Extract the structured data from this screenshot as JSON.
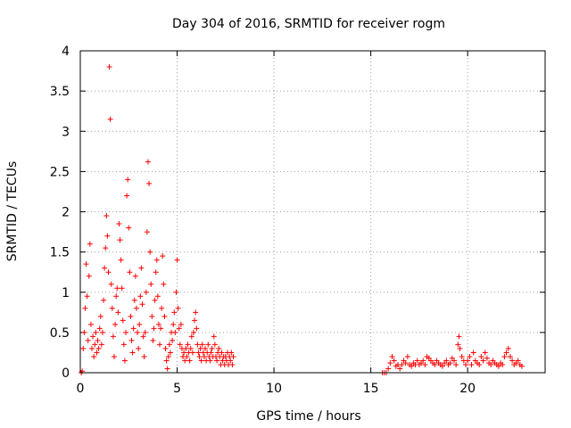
{
  "chart_data": {
    "type": "scatter",
    "title": "Day 304 of 2016, SRMTID for receiver rogm",
    "xlabel": "GPS time / hours",
    "ylabel": "SRMTID / TECUs",
    "xlim": [
      0,
      24
    ],
    "ylim": [
      0,
      4
    ],
    "xticks": [
      0,
      5,
      10,
      15,
      20
    ],
    "xtick_labels": [
      "0",
      "5",
      "10",
      "15",
      "20"
    ],
    "yticks": [
      0,
      0.5,
      1,
      1.5,
      2,
      2.5,
      3,
      3.5,
      4
    ],
    "ytick_labels": [
      "0",
      "0.5",
      "1",
      "1.5",
      "2",
      "2.5",
      "3",
      "3.5",
      "4"
    ],
    "grid": true,
    "marker": "+",
    "color": "#ff0000",
    "series": [
      {
        "name": "SRMTID",
        "points": [
          [
            0.05,
            0.0
          ],
          [
            0.1,
            0.02
          ],
          [
            0.15,
            0.3
          ],
          [
            0.2,
            0.5
          ],
          [
            0.25,
            0.8
          ],
          [
            0.3,
            1.35
          ],
          [
            0.35,
            0.95
          ],
          [
            0.4,
            0.4
          ],
          [
            0.45,
            1.2
          ],
          [
            0.5,
            1.6
          ],
          [
            0.55,
            0.6
          ],
          [
            0.6,
            0.3
          ],
          [
            0.65,
            0.45
          ],
          [
            0.7,
            0.2
          ],
          [
            0.75,
            0.35
          ],
          [
            0.8,
            0.5
          ],
          [
            0.85,
            0.25
          ],
          [
            0.9,
            0.4
          ],
          [
            0.95,
            0.3
          ],
          [
            1.0,
            0.55
          ],
          [
            1.05,
            0.7
          ],
          [
            1.1,
            0.35
          ],
          [
            1.15,
            0.5
          ],
          [
            1.2,
            0.9
          ],
          [
            1.25,
            1.3
          ],
          [
            1.3,
            1.55
          ],
          [
            1.35,
            1.95
          ],
          [
            1.4,
            1.7
          ],
          [
            1.45,
            1.25
          ],
          [
            1.5,
            3.8
          ],
          [
            1.55,
            3.15
          ],
          [
            1.6,
            1.1
          ],
          [
            1.65,
            0.8
          ],
          [
            1.7,
            0.45
          ],
          [
            1.75,
            0.2
          ],
          [
            1.8,
            0.6
          ],
          [
            1.85,
            0.95
          ],
          [
            1.9,
            1.05
          ],
          [
            1.95,
            0.75
          ],
          [
            2.0,
            1.85
          ],
          [
            2.05,
            1.65
          ],
          [
            2.1,
            1.4
          ],
          [
            2.15,
            1.05
          ],
          [
            2.2,
            0.65
          ],
          [
            2.25,
            0.35
          ],
          [
            2.3,
            0.15
          ],
          [
            2.35,
            0.5
          ],
          [
            2.4,
            2.2
          ],
          [
            2.45,
            2.4
          ],
          [
            2.5,
            1.8
          ],
          [
            2.55,
            1.25
          ],
          [
            2.6,
            0.7
          ],
          [
            2.65,
            0.4
          ],
          [
            2.7,
            0.25
          ],
          [
            2.75,
            0.55
          ],
          [
            2.8,
            0.9
          ],
          [
            2.85,
            1.2
          ],
          [
            2.9,
            0.8
          ],
          [
            2.95,
            0.5
          ],
          [
            3.0,
            0.3
          ],
          [
            3.05,
            0.6
          ],
          [
            3.1,
            0.95
          ],
          [
            3.15,
            1.3
          ],
          [
            3.2,
            0.85
          ],
          [
            3.25,
            0.45
          ],
          [
            3.3,
            0.2
          ],
          [
            3.35,
            0.5
          ],
          [
            3.4,
            1.0
          ],
          [
            3.45,
            1.75
          ],
          [
            3.5,
            2.62
          ],
          [
            3.55,
            2.35
          ],
          [
            3.6,
            1.5
          ],
          [
            3.65,
            1.1
          ],
          [
            3.7,
            0.7
          ],
          [
            3.75,
            0.4
          ],
          [
            3.8,
            0.55
          ],
          [
            3.85,
            0.9
          ],
          [
            3.9,
            1.25
          ],
          [
            3.95,
            1.4
          ],
          [
            4.0,
            0.95
          ],
          [
            4.05,
            0.6
          ],
          [
            4.1,
            0.35
          ],
          [
            4.15,
            0.55
          ],
          [
            4.2,
            0.8
          ],
          [
            4.25,
            1.45
          ],
          [
            4.3,
            1.1
          ],
          [
            4.35,
            0.7
          ],
          [
            4.4,
            0.3
          ],
          [
            4.45,
            0.15
          ],
          [
            4.5,
            0.05
          ],
          [
            4.55,
            0.2
          ],
          [
            4.6,
            0.35
          ],
          [
            4.65,
            0.25
          ],
          [
            4.7,
            0.5
          ],
          [
            4.75,
            0.4
          ],
          [
            4.8,
            0.6
          ],
          [
            4.85,
            0.75
          ],
          [
            4.9,
            0.5
          ],
          [
            4.95,
            1.0
          ],
          [
            5.0,
            1.4
          ],
          [
            5.05,
            0.8
          ],
          [
            5.1,
            0.55
          ],
          [
            5.15,
            0.35
          ],
          [
            5.2,
            0.6
          ],
          [
            5.25,
            0.3
          ],
          [
            5.3,
            0.2
          ],
          [
            5.35,
            0.25
          ],
          [
            5.4,
            0.15
          ],
          [
            5.45,
            0.3
          ],
          [
            5.5,
            0.2
          ],
          [
            5.55,
            0.35
          ],
          [
            5.6,
            0.25
          ],
          [
            5.65,
            0.15
          ],
          [
            5.7,
            0.3
          ],
          [
            5.75,
            0.45
          ],
          [
            5.8,
            0.25
          ],
          [
            5.85,
            0.5
          ],
          [
            5.9,
            0.65
          ],
          [
            5.95,
            0.75
          ],
          [
            6.0,
            0.55
          ],
          [
            6.05,
            0.35
          ],
          [
            6.1,
            0.25
          ],
          [
            6.15,
            0.2
          ],
          [
            6.2,
            0.3
          ],
          [
            6.25,
            0.15
          ],
          [
            6.3,
            0.35
          ],
          [
            6.35,
            0.25
          ],
          [
            6.4,
            0.2
          ],
          [
            6.45,
            0.3
          ],
          [
            6.5,
            0.15
          ],
          [
            6.55,
            0.25
          ],
          [
            6.6,
            0.35
          ],
          [
            6.65,
            0.2
          ],
          [
            6.7,
            0.15
          ],
          [
            6.75,
            0.25
          ],
          [
            6.8,
            0.3
          ],
          [
            6.85,
            0.2
          ],
          [
            6.9,
            0.45
          ],
          [
            6.95,
            0.35
          ],
          [
            7.0,
            0.2
          ],
          [
            7.05,
            0.15
          ],
          [
            7.1,
            0.25
          ],
          [
            7.15,
            0.3
          ],
          [
            7.2,
            0.2
          ],
          [
            7.25,
            0.1
          ],
          [
            7.3,
            0.25
          ],
          [
            7.35,
            0.15
          ],
          [
            7.4,
            0.2
          ],
          [
            7.45,
            0.1
          ],
          [
            7.5,
            0.2
          ],
          [
            7.55,
            0.15
          ],
          [
            7.6,
            0.25
          ],
          [
            7.65,
            0.1
          ],
          [
            7.7,
            0.2
          ],
          [
            7.75,
            0.15
          ],
          [
            7.8,
            0.25
          ],
          [
            7.85,
            0.1
          ],
          [
            7.9,
            0.2
          ],
          [
            15.6,
            0.0
          ],
          [
            15.7,
            0.0
          ],
          [
            15.8,
            0.0
          ],
          [
            15.9,
            0.05
          ],
          [
            16.0,
            0.12
          ],
          [
            16.1,
            0.2
          ],
          [
            16.2,
            0.15
          ],
          [
            16.3,
            0.08
          ],
          [
            16.4,
            0.1
          ],
          [
            16.5,
            0.05
          ],
          [
            16.6,
            0.1
          ],
          [
            16.7,
            0.15
          ],
          [
            16.8,
            0.12
          ],
          [
            16.9,
            0.2
          ],
          [
            17.0,
            0.1
          ],
          [
            17.1,
            0.08
          ],
          [
            17.2,
            0.12
          ],
          [
            17.3,
            0.1
          ],
          [
            17.4,
            0.15
          ],
          [
            17.5,
            0.1
          ],
          [
            17.6,
            0.12
          ],
          [
            17.7,
            0.15
          ],
          [
            17.8,
            0.1
          ],
          [
            17.9,
            0.2
          ],
          [
            18.0,
            0.18
          ],
          [
            18.1,
            0.15
          ],
          [
            18.2,
            0.12
          ],
          [
            18.3,
            0.1
          ],
          [
            18.4,
            0.15
          ],
          [
            18.5,
            0.12
          ],
          [
            18.6,
            0.1
          ],
          [
            18.7,
            0.08
          ],
          [
            18.8,
            0.12
          ],
          [
            18.9,
            0.15
          ],
          [
            19.0,
            0.1
          ],
          [
            19.1,
            0.12
          ],
          [
            19.2,
            0.18
          ],
          [
            19.3,
            0.15
          ],
          [
            19.4,
            0.1
          ],
          [
            19.5,
            0.35
          ],
          [
            19.55,
            0.45
          ],
          [
            19.6,
            0.3
          ],
          [
            19.7,
            0.2
          ],
          [
            19.8,
            0.15
          ],
          [
            19.9,
            0.1
          ],
          [
            20.0,
            0.15
          ],
          [
            20.1,
            0.2
          ],
          [
            20.2,
            0.1
          ],
          [
            20.3,
            0.25
          ],
          [
            20.4,
            0.15
          ],
          [
            20.5,
            0.12
          ],
          [
            20.6,
            0.1
          ],
          [
            20.7,
            0.2
          ],
          [
            20.8,
            0.15
          ],
          [
            20.9,
            0.25
          ],
          [
            21.0,
            0.18
          ],
          [
            21.1,
            0.12
          ],
          [
            21.2,
            0.1
          ],
          [
            21.3,
            0.15
          ],
          [
            21.4,
            0.12
          ],
          [
            21.5,
            0.1
          ],
          [
            21.6,
            0.08
          ],
          [
            21.7,
            0.12
          ],
          [
            21.8,
            0.1
          ],
          [
            21.9,
            0.2
          ],
          [
            22.0,
            0.25
          ],
          [
            22.1,
            0.3
          ],
          [
            22.2,
            0.2
          ],
          [
            22.3,
            0.15
          ],
          [
            22.4,
            0.1
          ],
          [
            22.5,
            0.12
          ],
          [
            22.6,
            0.15
          ],
          [
            22.7,
            0.1
          ],
          [
            22.8,
            0.08
          ]
        ]
      }
    ]
  }
}
